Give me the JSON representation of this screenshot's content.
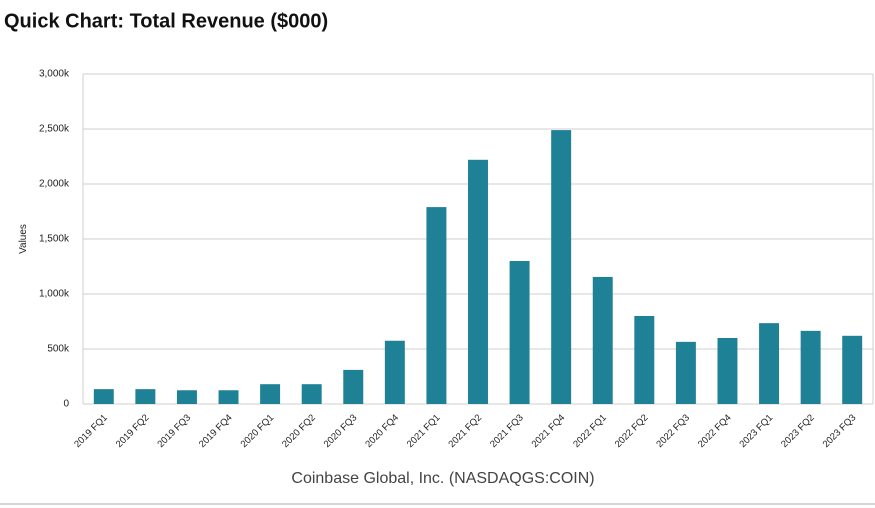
{
  "chart_data": {
    "type": "bar",
    "title": "Quick Chart: Total Revenue ($000)",
    "y_label": "Values",
    "footer": "Coinbase Global, Inc. (NASDAQGS:COIN)",
    "categories": [
      "2019 FQ1",
      "2019 FQ2",
      "2019 FQ3",
      "2019 FQ4",
      "2020 FQ1",
      "2020 FQ2",
      "2020 FQ3",
      "2020 FQ4",
      "2021 FQ1",
      "2021 FQ2",
      "2021 FQ3",
      "2021 FQ4",
      "2022 FQ1",
      "2022 FQ2",
      "2022 FQ3",
      "2022 FQ4",
      "2023 FQ1",
      "2023 FQ2",
      "2023 FQ3"
    ],
    "values": [
      135,
      135,
      125,
      125,
      180,
      180,
      310,
      575,
      1790,
      2220,
      1300,
      2490,
      1155,
      800,
      565,
      600,
      735,
      665,
      620
    ],
    "color": "#1f8196",
    "ylim": [
      0,
      3000
    ],
    "yticks": [
      0,
      {
        "value": 500,
        "label": "500k"
      },
      {
        "value": 1000,
        "label": "1,000k"
      },
      {
        "value": 1500,
        "label": "1,500k"
      },
      {
        "value": 2000,
        "label": "2,000k"
      },
      {
        "value": 2500,
        "label": "2,500k"
      },
      {
        "value": 3000,
        "label": "3,000k"
      }
    ],
    "grid": true
  }
}
